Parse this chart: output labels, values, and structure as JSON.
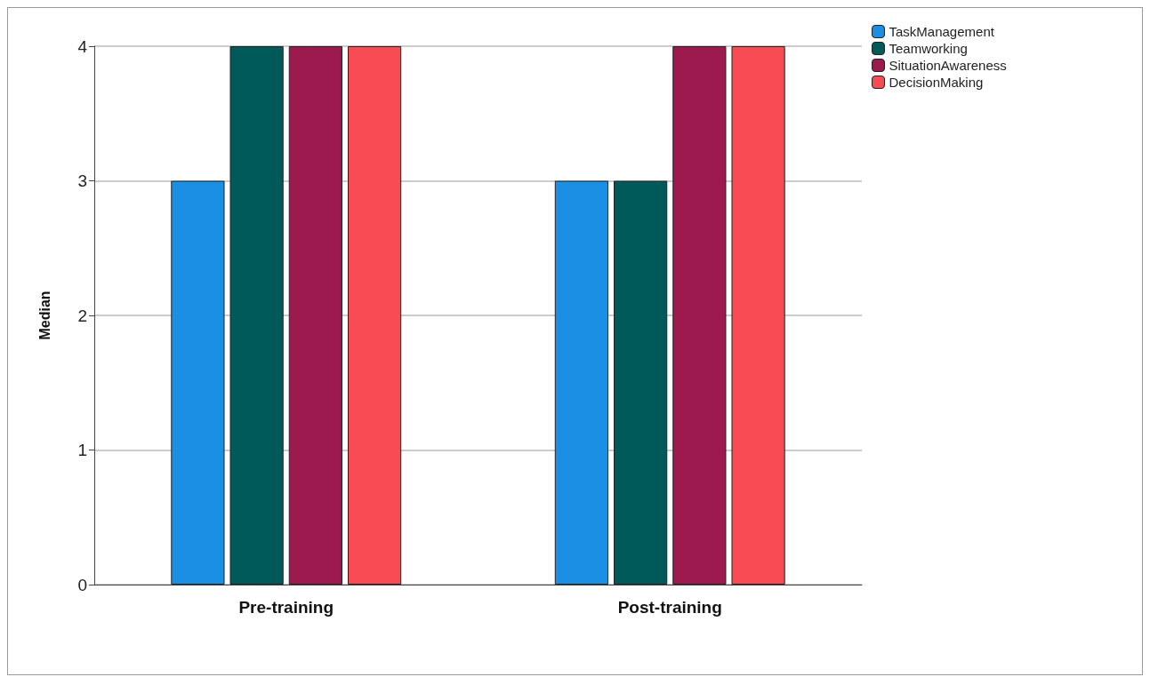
{
  "chart_data": {
    "type": "bar",
    "ylabel": "Median",
    "categories": [
      "Pre-training",
      "Post-training"
    ],
    "series": [
      {
        "name": "TaskManagement",
        "color": "#1a8fe3",
        "values": [
          3,
          3
        ]
      },
      {
        "name": "Teamworking",
        "color": "#005a5a",
        "values": [
          4,
          3
        ]
      },
      {
        "name": "SituationAwareness",
        "color": "#9c1a4e",
        "values": [
          4,
          4
        ]
      },
      {
        "name": "DecisionMaking",
        "color": "#f84c55",
        "values": [
          4,
          4
        ]
      }
    ],
    "ylim": [
      0,
      4
    ],
    "yticks": [
      0,
      1,
      2,
      3,
      4
    ],
    "grid": "y",
    "legend": "top right"
  }
}
